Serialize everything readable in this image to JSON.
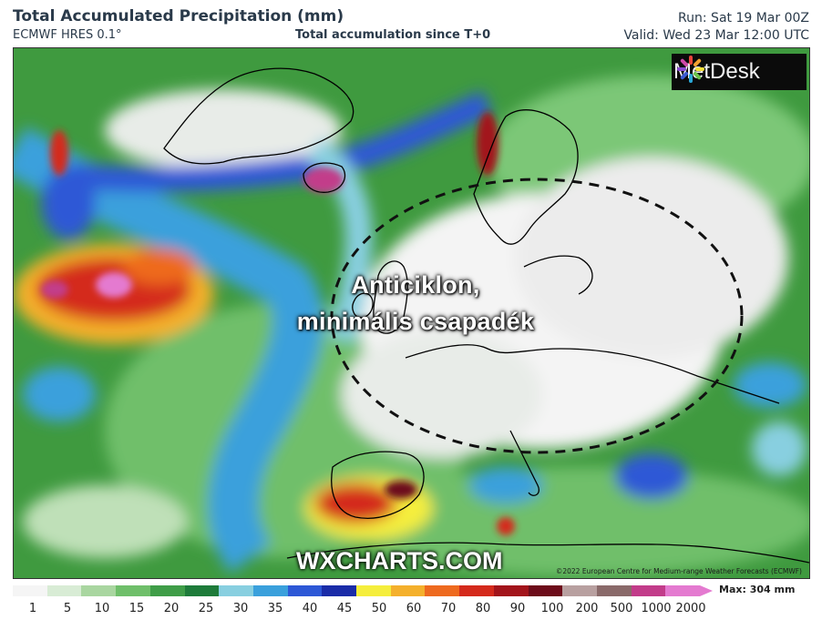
{
  "header": {
    "title": "Total Accumulated Precipitation (mm)",
    "model": "ECMWF HRES 0.1°",
    "subtitle": "Total accumulation since T+0",
    "run": "Run: Sat 19 Mar 00Z",
    "valid": "Valid: Wed 23 Mar 12:00 UTC"
  },
  "map": {
    "annotation_line1": "Anticiklon,",
    "annotation_line2": "minimális csapadék",
    "brand": "MetDesk",
    "watermark": "WXCHARTS.COM",
    "copyright": "©2022 European Centre for Medium-range Weather Forecasts (ECMWF)",
    "annotation_color": "#ffffff",
    "ellipse_style": "dashed black"
  },
  "legend": {
    "ticks": [
      "1",
      "5",
      "10",
      "15",
      "20",
      "25",
      "30",
      "35",
      "40",
      "45",
      "50",
      "60",
      "70",
      "80",
      "90",
      "100",
      "200",
      "500",
      "1000",
      "2000"
    ],
    "colors": [
      "#f5f5f5",
      "#d8ecd5",
      "#a9d6a0",
      "#6fbf6a",
      "#3f9d48",
      "#1e7b3a",
      "#88cfe0",
      "#3aa0dc",
      "#2d58d6",
      "#1a2ca8",
      "#f5ee3c",
      "#f4b02c",
      "#ee6a1f",
      "#d42a1c",
      "#a2141b",
      "#6d0c1a",
      "#b8a0a0",
      "#8a6a6a",
      "#c23c8a",
      "#e47ad0"
    ],
    "max_label": "Max: 304 mm"
  }
}
